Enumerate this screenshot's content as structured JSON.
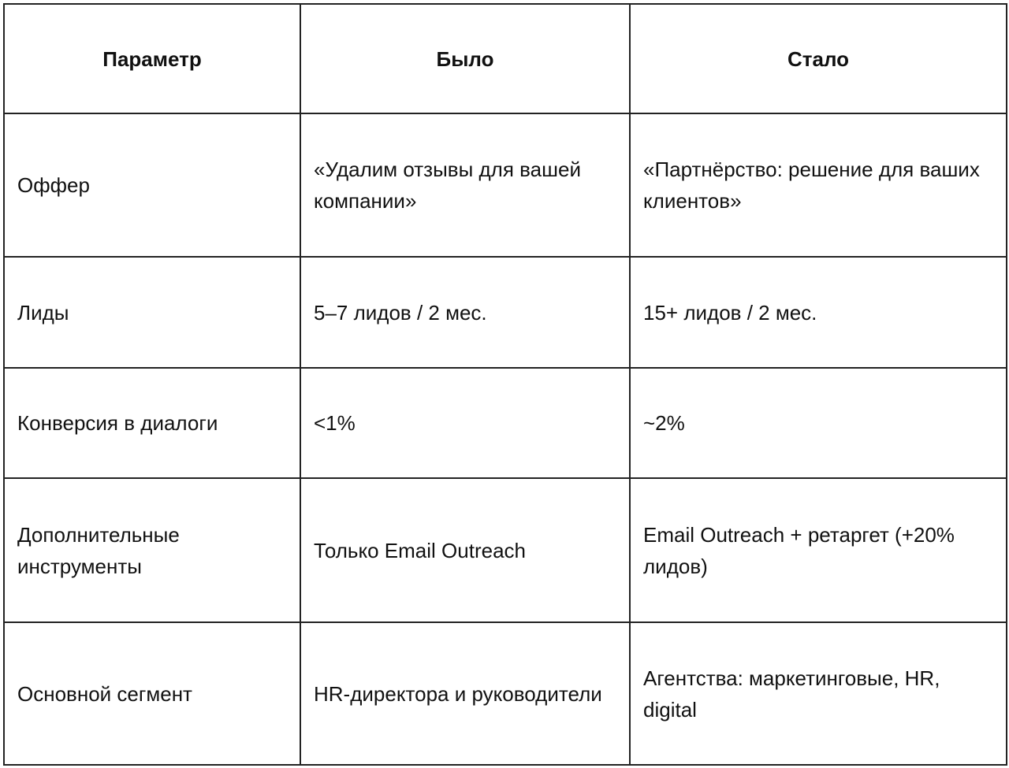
{
  "table": {
    "headers": [
      "Параметр",
      "Было",
      "Стало"
    ],
    "rows": [
      [
        "Оффер",
        "«Удалим отзывы для вашей компании»",
        "«Партнёрство: решение для ваших клиентов»"
      ],
      [
        "Лиды",
        "5–7 лидов / 2 мес.",
        "15+ лидов / 2 мес."
      ],
      [
        "Конверсия в диалоги",
        "<1%",
        "~2%"
      ],
      [
        "Дополнительные инструменты",
        "Только Email Outreach",
        "Email Outreach + ретаргет (+20% лидов)"
      ],
      [
        "Основной сегмент",
        "HR-директора и руководители",
        "Агентства: маркетинговые, HR, digital"
      ]
    ]
  }
}
